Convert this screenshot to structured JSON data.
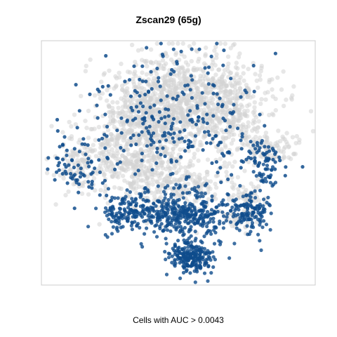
{
  "chart_data": {
    "type": "scatter",
    "title": "Zscan29 (65g)",
    "xlabel": "",
    "ylabel": "",
    "footer": "Cells with AUC > 0.0043",
    "axes_shown": false,
    "grid": false,
    "legend": "none",
    "colors": {
      "below_threshold": "#d3d3d3",
      "above_threshold": "#0f4c8c",
      "frame": "#cccccc"
    },
    "point_regions": {
      "gray": [
        [
          265,
          140,
          100,
          60,
          850
        ],
        [
          215,
          170,
          55,
          60,
          380
        ],
        [
          180,
          225,
          70,
          55,
          320
        ],
        [
          245,
          260,
          80,
          50,
          300
        ],
        [
          330,
          165,
          35,
          60,
          160
        ],
        [
          385,
          210,
          35,
          20,
          90
        ],
        [
          110,
          230,
          28,
          40,
          90
        ],
        [
          350,
          280,
          22,
          18,
          50
        ],
        [
          340,
          310,
          25,
          15,
          40
        ]
      ],
      "blue_sparse": [
        [
          250,
          170,
          110,
          90,
          260
        ],
        [
          110,
          240,
          35,
          45,
          70
        ],
        [
          370,
          220,
          35,
          25,
          50
        ]
      ],
      "blue_dense": [
        [
          255,
          305,
          80,
          30,
          420
        ],
        [
          272,
          365,
          30,
          22,
          220
        ],
        [
          360,
          305,
          25,
          25,
          110
        ],
        [
          180,
          305,
          30,
          25,
          90
        ],
        [
          375,
          250,
          15,
          15,
          30
        ]
      ]
    }
  }
}
